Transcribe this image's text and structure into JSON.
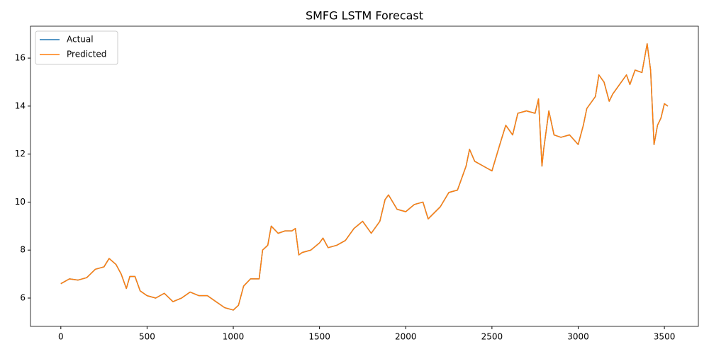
{
  "chart_data": {
    "type": "line",
    "title": "SMFG LSTM Forecast",
    "x": [
      0,
      50,
      100,
      150,
      200,
      250,
      280,
      320,
      350,
      380,
      400,
      430,
      460,
      500,
      550,
      600,
      650,
      700,
      750,
      800,
      850,
      900,
      950,
      1000,
      1030,
      1060,
      1100,
      1150,
      1170,
      1200,
      1220,
      1260,
      1300,
      1340,
      1360,
      1380,
      1400,
      1450,
      1500,
      1520,
      1550,
      1600,
      1650,
      1700,
      1750,
      1800,
      1850,
      1880,
      1900,
      1950,
      2000,
      2050,
      2100,
      2130,
      2200,
      2250,
      2300,
      2350,
      2370,
      2400,
      2450,
      2500,
      2550,
      2580,
      2620,
      2650,
      2700,
      2750,
      2770,
      2790,
      2800,
      2830,
      2860,
      2900,
      2950,
      3000,
      3030,
      3050,
      3100,
      3120,
      3150,
      3180,
      3200,
      3250,
      3280,
      3300,
      3330,
      3370,
      3400,
      3420,
      3440,
      3460,
      3480,
      3500,
      3520
    ],
    "series": [
      {
        "name": "Actual",
        "color": "#1f77b4",
        "values": [
          6.6,
          6.8,
          6.75,
          6.85,
          7.2,
          7.3,
          7.65,
          7.4,
          7.0,
          6.4,
          6.9,
          6.9,
          6.3,
          6.1,
          6.0,
          6.2,
          5.85,
          6.0,
          6.25,
          6.1,
          6.1,
          5.85,
          5.6,
          5.5,
          5.7,
          6.5,
          6.8,
          6.8,
          8.0,
          8.2,
          9.0,
          8.7,
          8.8,
          8.8,
          8.9,
          7.8,
          7.9,
          8.0,
          8.3,
          8.5,
          8.1,
          8.2,
          8.4,
          8.9,
          9.2,
          8.7,
          9.2,
          10.1,
          10.3,
          9.7,
          9.6,
          9.9,
          10.0,
          9.3,
          9.8,
          10.4,
          10.5,
          11.5,
          12.2,
          11.7,
          11.5,
          11.3,
          12.5,
          13.2,
          12.8,
          13.7,
          13.8,
          13.7,
          14.3,
          11.5,
          12.2,
          13.8,
          12.8,
          12.7,
          12.8,
          12.4,
          13.2,
          13.9,
          14.4,
          15.3,
          15.0,
          14.2,
          14.5,
          15.0,
          15.3,
          14.9,
          15.5,
          15.4,
          16.6,
          15.5,
          12.4,
          13.2,
          13.5,
          14.1,
          14.0
        ]
      },
      {
        "name": "Predicted",
        "color": "#ff7f0e",
        "values": [
          6.6,
          6.8,
          6.75,
          6.85,
          7.2,
          7.3,
          7.65,
          7.4,
          7.0,
          6.4,
          6.9,
          6.9,
          6.3,
          6.1,
          6.0,
          6.2,
          5.85,
          6.0,
          6.25,
          6.1,
          6.1,
          5.85,
          5.6,
          5.5,
          5.7,
          6.5,
          6.8,
          6.8,
          8.0,
          8.2,
          9.0,
          8.7,
          8.8,
          8.8,
          8.9,
          7.8,
          7.9,
          8.0,
          8.3,
          8.5,
          8.1,
          8.2,
          8.4,
          8.9,
          9.2,
          8.7,
          9.2,
          10.1,
          10.3,
          9.7,
          9.6,
          9.9,
          10.0,
          9.3,
          9.8,
          10.4,
          10.5,
          11.5,
          12.2,
          11.7,
          11.5,
          11.3,
          12.5,
          13.2,
          12.8,
          13.7,
          13.8,
          13.7,
          14.3,
          11.5,
          12.2,
          13.8,
          12.8,
          12.7,
          12.8,
          12.4,
          13.2,
          13.9,
          14.4,
          15.3,
          15.0,
          14.2,
          14.5,
          15.0,
          15.3,
          14.9,
          15.5,
          15.4,
          16.6,
          15.5,
          12.4,
          13.2,
          13.5,
          14.1,
          14.0
        ]
      }
    ],
    "xlim": [
      -176,
      3697
    ],
    "xticks": [
      0,
      500,
      1000,
      1500,
      2000,
      2500,
      3000,
      3500
    ],
    "ylim": [
      4.82,
      17.33
    ],
    "yticks": [
      6,
      8,
      10,
      12,
      14,
      16
    ],
    "legend": "upper left"
  }
}
